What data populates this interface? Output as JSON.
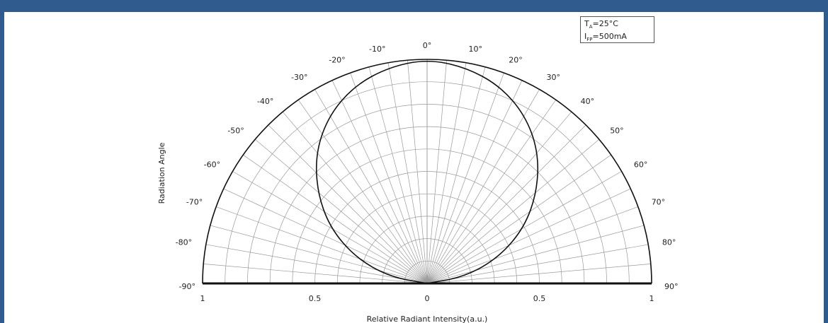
{
  "chart_data": {
    "type": "polar",
    "x_axis_label": "Relative Radiant Intensity(a.u.)",
    "y_axis_label": "Radiation Angle",
    "radial_ticks": [
      "1",
      "0.5",
      "0",
      "0.5",
      "1"
    ],
    "radial_tick_values": [
      1,
      0.5,
      0,
      0.5,
      1
    ],
    "angle_labels_left": [
      "-10°",
      "-20°",
      "-30°",
      "-40°",
      "-50°",
      "-60°",
      "-70°",
      "-80°",
      "-90°"
    ],
    "angle_labels_right": [
      "0°",
      "10°",
      "20°",
      "30°",
      "40°",
      "50°",
      "60°",
      "70°",
      "80°",
      "90°"
    ],
    "angles": [
      -90,
      -80,
      -70,
      -60,
      -50,
      -40,
      -30,
      -20,
      -10,
      0,
      10,
      20,
      30,
      40,
      50,
      60,
      70,
      80,
      90
    ],
    "legend": {
      "line1_main": "T",
      "line1_sub": "A",
      "line1_rest": "=25°C",
      "line2_main": "I",
      "line2_sub": "FP",
      "line2_rest": "=500mA"
    },
    "series": [
      {
        "angles": [
          -90,
          -80,
          -70,
          -60,
          -50,
          -40,
          -30,
          -20,
          -10,
          0,
          10,
          20,
          30,
          40,
          50,
          60,
          70,
          80,
          90
        ],
        "values": [
          0,
          0.17,
          0.34,
          0.5,
          0.64,
          0.77,
          0.87,
          0.94,
          0.98,
          1,
          0.98,
          0.94,
          0.87,
          0.77,
          0.64,
          0.5,
          0.34,
          0.17,
          0
        ]
      }
    ],
    "grid": true
  }
}
